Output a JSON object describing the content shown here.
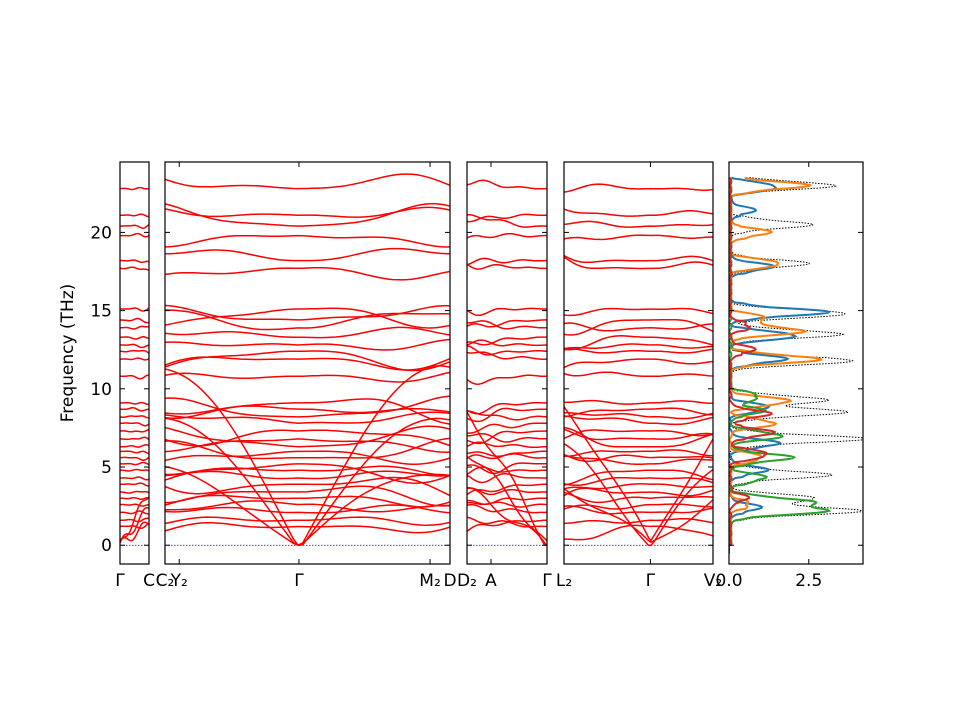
{
  "chart_data": {
    "type": "line",
    "ylabel": "Frequency (THz)",
    "ylim": [
      -1.2,
      24.5
    ],
    "yticks": [
      0,
      5,
      10,
      15,
      20
    ],
    "band_color": "#ff0000",
    "zero_line_color": "#0000cc",
    "panels": [
      {
        "ticks": [
          {
            "x": 0,
            "label": "Γ"
          },
          {
            "x": 1,
            "label": "C"
          }
        ]
      },
      {
        "ticks": [
          {
            "x": 0,
            "label": "C₂"
          },
          {
            "x": 0.05,
            "label": "Y₂"
          },
          {
            "x": 0.47,
            "label": "Γ"
          },
          {
            "x": 0.93,
            "label": "M₂"
          },
          {
            "x": 1,
            "label": "D"
          }
        ]
      },
      {
        "ticks": [
          {
            "x": 0,
            "label": "D₂"
          },
          {
            "x": 0.3,
            "label": "A"
          },
          {
            "x": 1,
            "label": "Γ"
          }
        ]
      },
      {
        "ticks": [
          {
            "x": 0,
            "label": "L₂"
          },
          {
            "x": 0.58,
            "label": "Γ"
          },
          {
            "x": 1,
            "label": "V₂"
          }
        ]
      }
    ],
    "band_frequencies_at_gamma": [
      0,
      0,
      0,
      1.2,
      1.6,
      2.1,
      2.6,
      3.0,
      3.4,
      3.9,
      4.3,
      4.8,
      5.2,
      5.6,
      6.0,
      6.3,
      6.8,
      7.3,
      7.8,
      8.2,
      8.7,
      9.1,
      10.8,
      11.9,
      12.4,
      12.8,
      13.3,
      13.9,
      14.4,
      15.1,
      17.7,
      18.2,
      19.8,
      20.4,
      21.1,
      22.8
    ],
    "dos": {
      "xlabel": "",
      "xticks": [
        0.0,
        2.5
      ],
      "xlim": [
        0,
        4.2
      ],
      "series": [
        {
          "color": "#000000",
          "style": "dotted",
          "peaks": [
            [
              2.2,
              4.0
            ],
            [
              3.0,
              2.6
            ],
            [
              4.5,
              3.0
            ],
            [
              6.8,
              4.1
            ],
            [
              8.5,
              3.5
            ],
            [
              9.3,
              2.9
            ],
            [
              11.8,
              3.8
            ],
            [
              13.5,
              3.4
            ],
            [
              14.8,
              3.6
            ],
            [
              18.0,
              2.3
            ],
            [
              20.5,
              2.4
            ],
            [
              23.0,
              3.2
            ]
          ]
        },
        {
          "color": "#1f77b4",
          "style": "solid",
          "peaks": [
            [
              2.4,
              0.8
            ],
            [
              4.8,
              1.0
            ],
            [
              6.5,
              1.4
            ],
            [
              8.8,
              1.1
            ],
            [
              11.9,
              1.6
            ],
            [
              13.4,
              2.0
            ],
            [
              14.9,
              2.9
            ],
            [
              17.8,
              1.2
            ],
            [
              21.4,
              0.6
            ],
            [
              22.9,
              1.4
            ]
          ]
        },
        {
          "color": "#ff7f0e",
          "style": "solid",
          "peaks": [
            [
              2.6,
              0.5
            ],
            [
              5.6,
              0.9
            ],
            [
              7.8,
              1.3
            ],
            [
              9.2,
              1.8
            ],
            [
              11.9,
              2.7
            ],
            [
              13.7,
              2.2
            ],
            [
              14.5,
              1.0
            ],
            [
              18.0,
              1.5
            ],
            [
              20.0,
              1.1
            ],
            [
              23.0,
              2.3
            ]
          ]
        },
        {
          "color": "#2ca02c",
          "style": "solid",
          "peaks": [
            [
              2.2,
              2.8
            ],
            [
              2.8,
              2.3
            ],
            [
              4.3,
              1.0
            ],
            [
              5.6,
              1.8
            ],
            [
              7.0,
              1.5
            ],
            [
              8.6,
              0.9
            ],
            [
              9.5,
              0.8
            ]
          ]
        },
        {
          "color": "#d62728",
          "style": "solid",
          "peaks": [
            [
              3.0,
              0.4
            ],
            [
              5.8,
              1.1
            ],
            [
              7.2,
              1.2
            ],
            [
              8.4,
              1.1
            ],
            [
              12.5,
              0.6
            ],
            [
              14.0,
              0.5
            ]
          ]
        }
      ]
    }
  }
}
